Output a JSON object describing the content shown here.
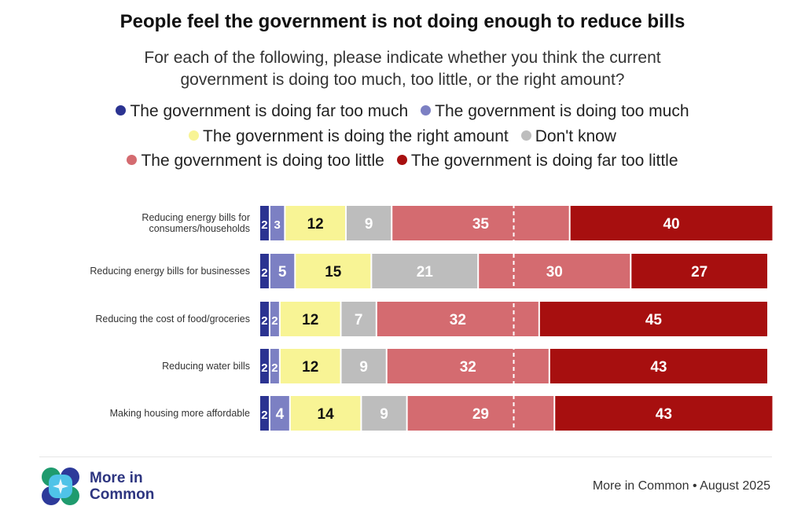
{
  "chart_data": {
    "type": "bar",
    "orientation": "horizontal",
    "stacked": true,
    "title": "People feel the government is not doing enough to reduce bills",
    "subtitle": "For each of the following, please indicate whether you think the current government is doing too much, too little, or the right amount?",
    "categories": [
      "Reducing energy bills for consumers/households",
      "Reducing energy bills for businesses",
      "Reducing the cost of food/groceries",
      "Reducing water bills",
      "Making housing more affordable"
    ],
    "series": [
      {
        "name": "The government is doing far too much",
        "color": "#2b3391",
        "text_color": "#ffffff",
        "values": [
          2,
          2,
          2,
          2,
          2
        ]
      },
      {
        "name": "The government is doing too much",
        "color": "#7c80c3",
        "text_color": "#ffffff",
        "values": [
          3,
          5,
          2,
          2,
          4
        ]
      },
      {
        "name": "The government is doing the right amount",
        "color": "#f8f495",
        "text_color": "#111111",
        "values": [
          12,
          15,
          12,
          12,
          14
        ]
      },
      {
        "name": "Don't know",
        "color": "#bdbdbd",
        "text_color": "#ffffff",
        "values": [
          9,
          21,
          7,
          9,
          9
        ]
      },
      {
        "name": "The government is doing too little",
        "color": "#d46b70",
        "text_color": "#ffffff",
        "values": [
          35,
          30,
          32,
          32,
          29
        ]
      },
      {
        "name": "The government is doing far too little",
        "color": "#a70f0f",
        "text_color": "#ffffff",
        "values": [
          40,
          27,
          45,
          43,
          43
        ]
      }
    ],
    "xlim": [
      0,
      100
    ],
    "reference_line": 50,
    "legend_position": "top",
    "grid": false
  },
  "footer": {
    "logo_text": [
      "More in",
      "Common"
    ],
    "source": "More in Common • August 2025"
  }
}
